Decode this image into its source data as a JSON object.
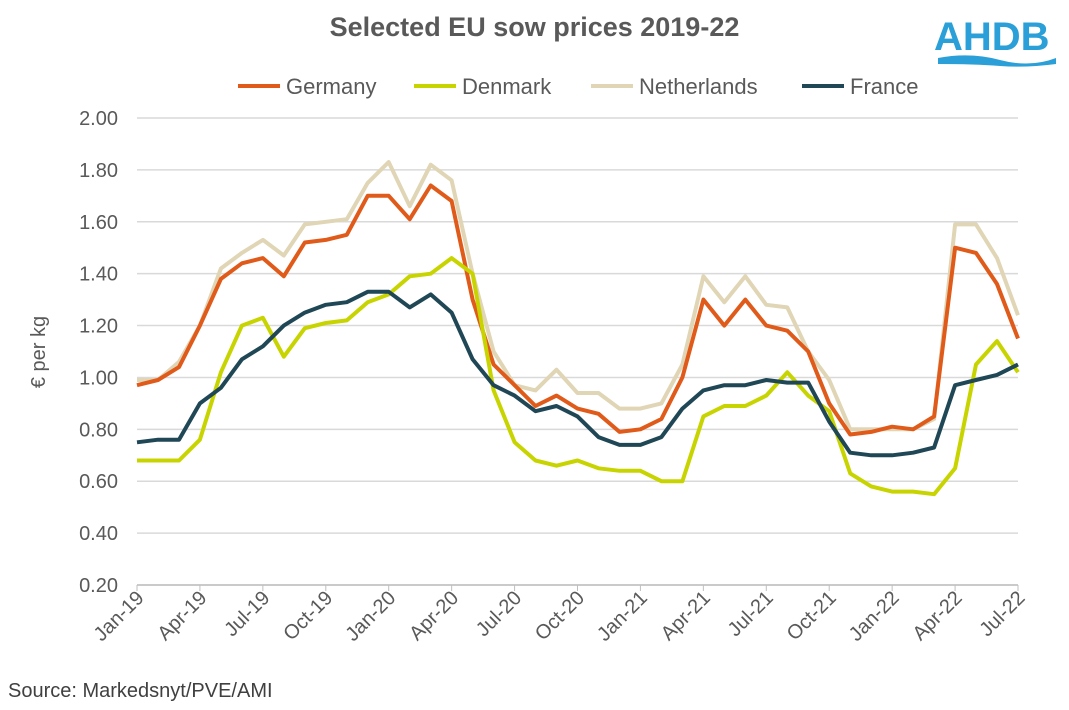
{
  "logo_text": "AHDB",
  "source": "Source: Markedsnyt/PVE/AMI",
  "chart_data": {
    "type": "line",
    "title": "Selected EU sow prices 2019-22",
    "xlabel": "",
    "ylabel": "€ per kg",
    "ylim": [
      0.2,
      2.0
    ],
    "yticks": [
      "0.20",
      "0.40",
      "0.60",
      "0.80",
      "1.00",
      "1.20",
      "1.40",
      "1.60",
      "1.80",
      "2.00"
    ],
    "xticks": [
      "Jan-19",
      "Apr-19",
      "Jul-19",
      "Oct-19",
      "Jan-20",
      "Apr-20",
      "Jul-20",
      "Oct-20",
      "Jan-21",
      "Apr-21",
      "Jul-21",
      "Oct-21",
      "Jan-22",
      "Apr-22",
      "Jul-22"
    ],
    "x": [
      "Jan-19",
      "Feb-19",
      "Mar-19",
      "Apr-19",
      "May-19",
      "Jun-19",
      "Jul-19",
      "Aug-19",
      "Sep-19",
      "Oct-19",
      "Nov-19",
      "Dec-19",
      "Jan-20",
      "Feb-20",
      "Mar-20",
      "Apr-20",
      "May-20",
      "Jun-20",
      "Jul-20",
      "Aug-20",
      "Sep-20",
      "Oct-20",
      "Nov-20",
      "Dec-20",
      "Jan-21",
      "Feb-21",
      "Mar-21",
      "Apr-21",
      "May-21",
      "Jun-21",
      "Jul-21",
      "Aug-21",
      "Sep-21",
      "Oct-21",
      "Nov-21",
      "Dec-21",
      "Jan-22",
      "Feb-22",
      "Mar-22",
      "Apr-22",
      "May-22",
      "Jun-22",
      "Jul-22"
    ],
    "grid": true,
    "legend": "top",
    "series": [
      {
        "name": "Germany",
        "color": "#E05A1A",
        "values": [
          0.97,
          0.99,
          1.04,
          1.2,
          1.38,
          1.44,
          1.46,
          1.39,
          1.52,
          1.53,
          1.55,
          1.7,
          1.7,
          1.61,
          1.74,
          1.68,
          1.3,
          1.05,
          0.97,
          0.89,
          0.93,
          0.88,
          0.86,
          0.79,
          0.8,
          0.84,
          1.0,
          1.3,
          1.2,
          1.3,
          1.2,
          1.18,
          1.1,
          0.9,
          0.78,
          0.79,
          0.81,
          0.8,
          0.85,
          1.5,
          1.48,
          1.36,
          1.15
        ]
      },
      {
        "name": "Denmark",
        "color": "#C8D400",
        "values": [
          0.68,
          0.68,
          0.68,
          0.76,
          1.02,
          1.2,
          1.23,
          1.08,
          1.19,
          1.21,
          1.22,
          1.29,
          1.32,
          1.39,
          1.4,
          1.46,
          1.4,
          0.95,
          0.75,
          0.68,
          0.66,
          0.68,
          0.65,
          0.64,
          0.64,
          0.6,
          0.6,
          0.85,
          0.89,
          0.89,
          0.93,
          1.02,
          0.93,
          0.87,
          0.63,
          0.58,
          0.56,
          0.56,
          0.55,
          0.65,
          1.05,
          1.14,
          1.02
        ]
      },
      {
        "name": "Netherlands",
        "color": "#E0D5B5",
        "values": [
          0.99,
          0.99,
          1.06,
          1.2,
          1.42,
          1.48,
          1.53,
          1.47,
          1.59,
          1.6,
          1.61,
          1.75,
          1.83,
          1.66,
          1.82,
          1.76,
          1.4,
          1.1,
          0.97,
          0.95,
          1.03,
          0.94,
          0.94,
          0.88,
          0.88,
          0.9,
          1.05,
          1.39,
          1.29,
          1.39,
          1.28,
          1.27,
          1.1,
          0.99,
          0.8,
          0.8,
          0.8,
          0.8,
          0.84,
          1.59,
          1.59,
          1.46,
          1.24
        ]
      },
      {
        "name": "France",
        "color": "#1F4756",
        "values": [
          0.75,
          0.76,
          0.76,
          0.9,
          0.96,
          1.07,
          1.12,
          1.2,
          1.25,
          1.28,
          1.29,
          1.33,
          1.33,
          1.27,
          1.32,
          1.25,
          1.07,
          0.97,
          0.93,
          0.87,
          0.89,
          0.85,
          0.77,
          0.74,
          0.74,
          0.77,
          0.88,
          0.95,
          0.97,
          0.97,
          0.99,
          0.98,
          0.98,
          0.83,
          0.71,
          0.7,
          0.7,
          0.71,
          0.73,
          0.97,
          0.99,
          1.01,
          1.05
        ]
      }
    ]
  }
}
